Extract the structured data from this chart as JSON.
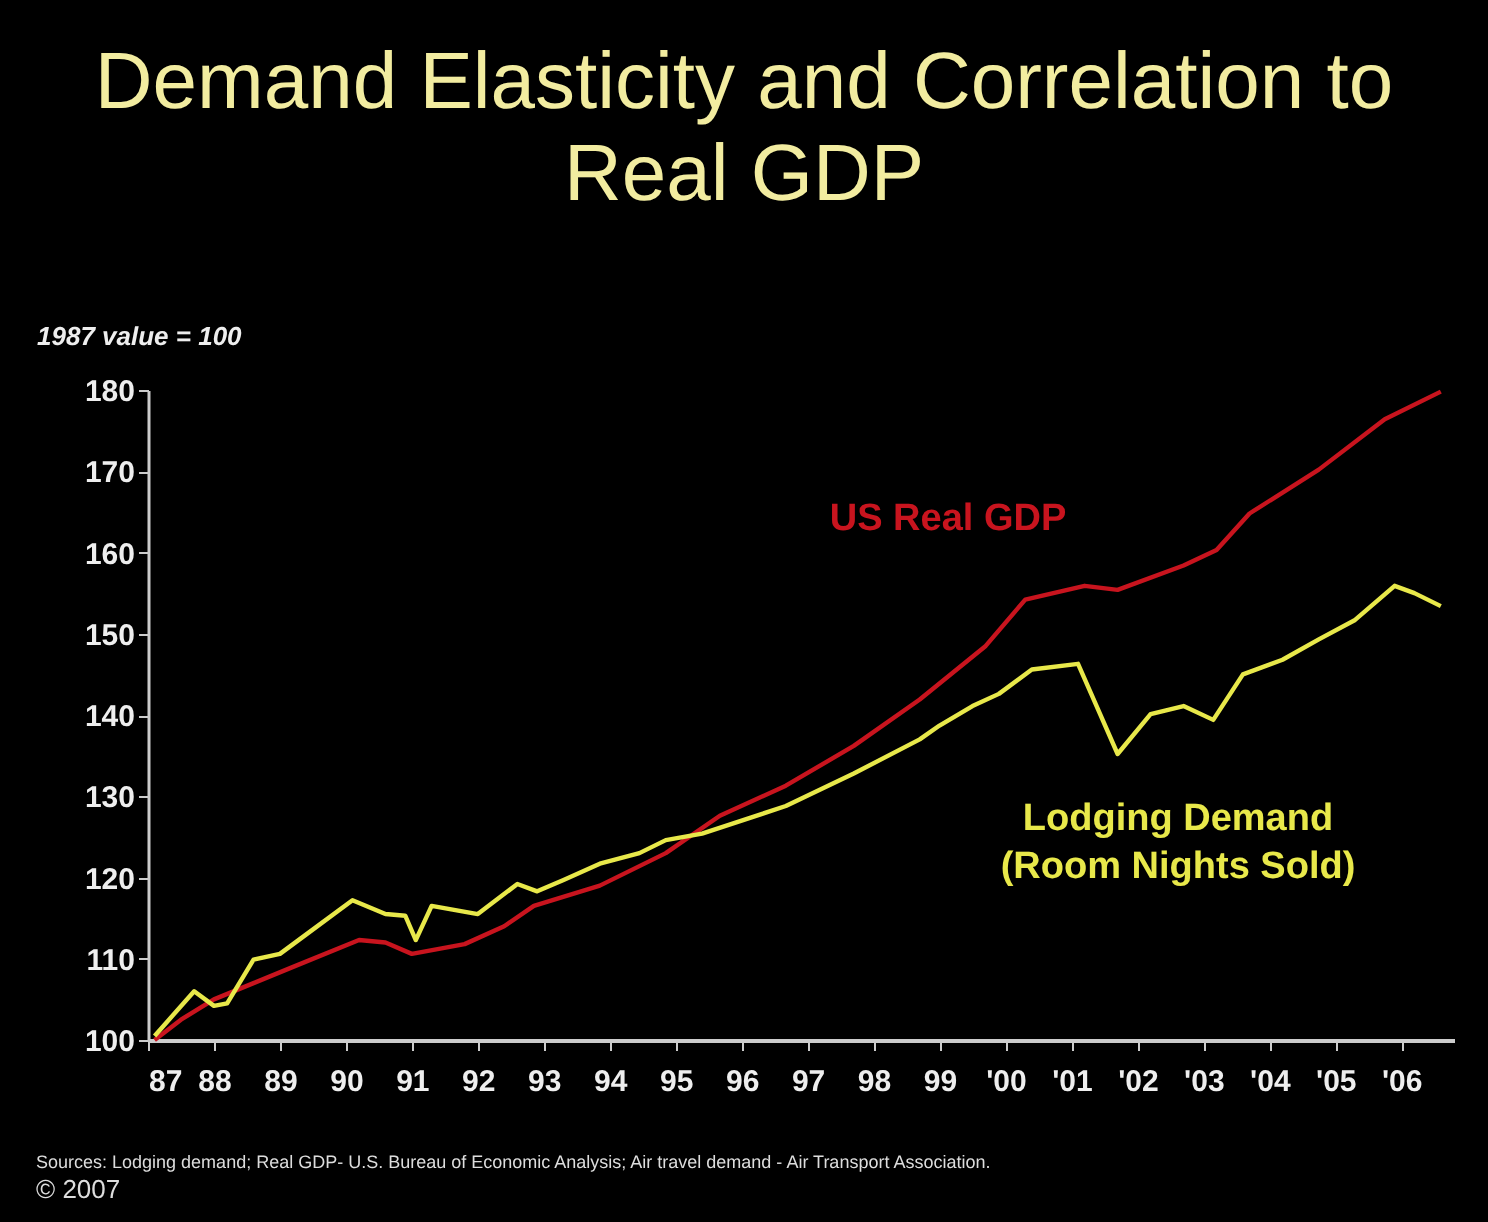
{
  "chart_data": {
    "type": "line",
    "title": "Demand Elasticity and Correlation to Real GDP",
    "ylabel": "1987 value = 100",
    "xlim": [
      1987,
      2006.8
    ],
    "xticks": [
      {
        "value": 1987,
        "label": "87"
      },
      {
        "value": 1988,
        "label": "88"
      },
      {
        "value": 1989,
        "label": "89"
      },
      {
        "value": 1990,
        "label": "90"
      },
      {
        "value": 1991,
        "label": "91"
      },
      {
        "value": 1992,
        "label": "92"
      },
      {
        "value": 1993,
        "label": "93"
      },
      {
        "value": 1994,
        "label": "94"
      },
      {
        "value": 1995,
        "label": "95"
      },
      {
        "value": 1996,
        "label": "96"
      },
      {
        "value": 1997,
        "label": "97"
      },
      {
        "value": 1998,
        "label": "98"
      },
      {
        "value": 1999,
        "label": "99"
      },
      {
        "value": 2000,
        "label": "'00"
      },
      {
        "value": 2001,
        "label": "'01"
      },
      {
        "value": 2002,
        "label": "'02"
      },
      {
        "value": 2003,
        "label": "'03"
      },
      {
        "value": 2004,
        "label": "'04"
      },
      {
        "value": 2005,
        "label": "'05"
      },
      {
        "value": 2006,
        "label": "'06"
      }
    ],
    "ylim": [
      100,
      180
    ],
    "yticks": [
      100,
      110,
      120,
      130,
      140,
      150,
      160,
      170,
      180
    ],
    "series": [
      {
        "name": "US Real GDP",
        "color": "#c8141e",
        "x": [
          1987.1,
          1987.5,
          1988.0,
          1988.6,
          1989.2,
          1990.2,
          1990.6,
          1991.0,
          1991.8,
          1992.4,
          1992.85,
          1993.85,
          1994.85,
          1995.67,
          1996.67,
          1997.7,
          1998.7,
          1999.7,
          2000.3,
          2001.2,
          2001.7,
          2002.7,
          2003.2,
          2003.7,
          2004.75,
          2005.75,
          2006.6
        ],
        "values": [
          100,
          102.5,
          105,
          107,
          109,
          112.3,
          112,
          110.6,
          111.8,
          114,
          116.5,
          119,
          123,
          127.6,
          131.3,
          136.2,
          141.9,
          148.5,
          154.2,
          155.9,
          155.4,
          158.4,
          160.3,
          164.8,
          170.2,
          176.4,
          179.8
        ]
      },
      {
        "name": "Lodging Demand (Room Nights Sold)",
        "color": "#e8e84a",
        "x": [
          1987.1,
          1987.7,
          1988.0,
          1988.2,
          1988.6,
          1989.0,
          1989.4,
          1990.1,
          1990.6,
          1990.9,
          1991.06,
          1991.3,
          1992.0,
          1992.6,
          1992.9,
          1993.3,
          1993.85,
          1994.45,
          1994.85,
          1995.4,
          1996.3,
          1996.67,
          1997.7,
          1998.7,
          1999.0,
          1999.5,
          1999.9,
          2000.4,
          2001.1,
          2001.3,
          2001.7,
          2002.2,
          2002.7,
          2003.15,
          2003.6,
          2004.2,
          2004.75,
          2005.3,
          2005.9,
          2006.2,
          2006.6
        ],
        "values": [
          100.5,
          106,
          104.2,
          104.5,
          109.9,
          110.6,
          113,
          117.2,
          115.5,
          115.3,
          112.3,
          116.5,
          115.5,
          119.2,
          118.3,
          119.7,
          121.7,
          123,
          124.6,
          125.4,
          127.8,
          128.8,
          132.8,
          137,
          138.7,
          141.1,
          142.6,
          145.6,
          146.3,
          142.6,
          135.2,
          140.1,
          141.1,
          139.4,
          145,
          146.8,
          149.3,
          151.7,
          155.9,
          155,
          153.4
        ]
      }
    ],
    "legend": false,
    "marker": "none",
    "line_style": "solid",
    "grid": false,
    "annotations": [
      "Sources: Lodging demand; Real GDP- U.S. Bureau of Economic Analysis; Air travel demand - Air Transport Association.",
      "© 2007"
    ]
  }
}
